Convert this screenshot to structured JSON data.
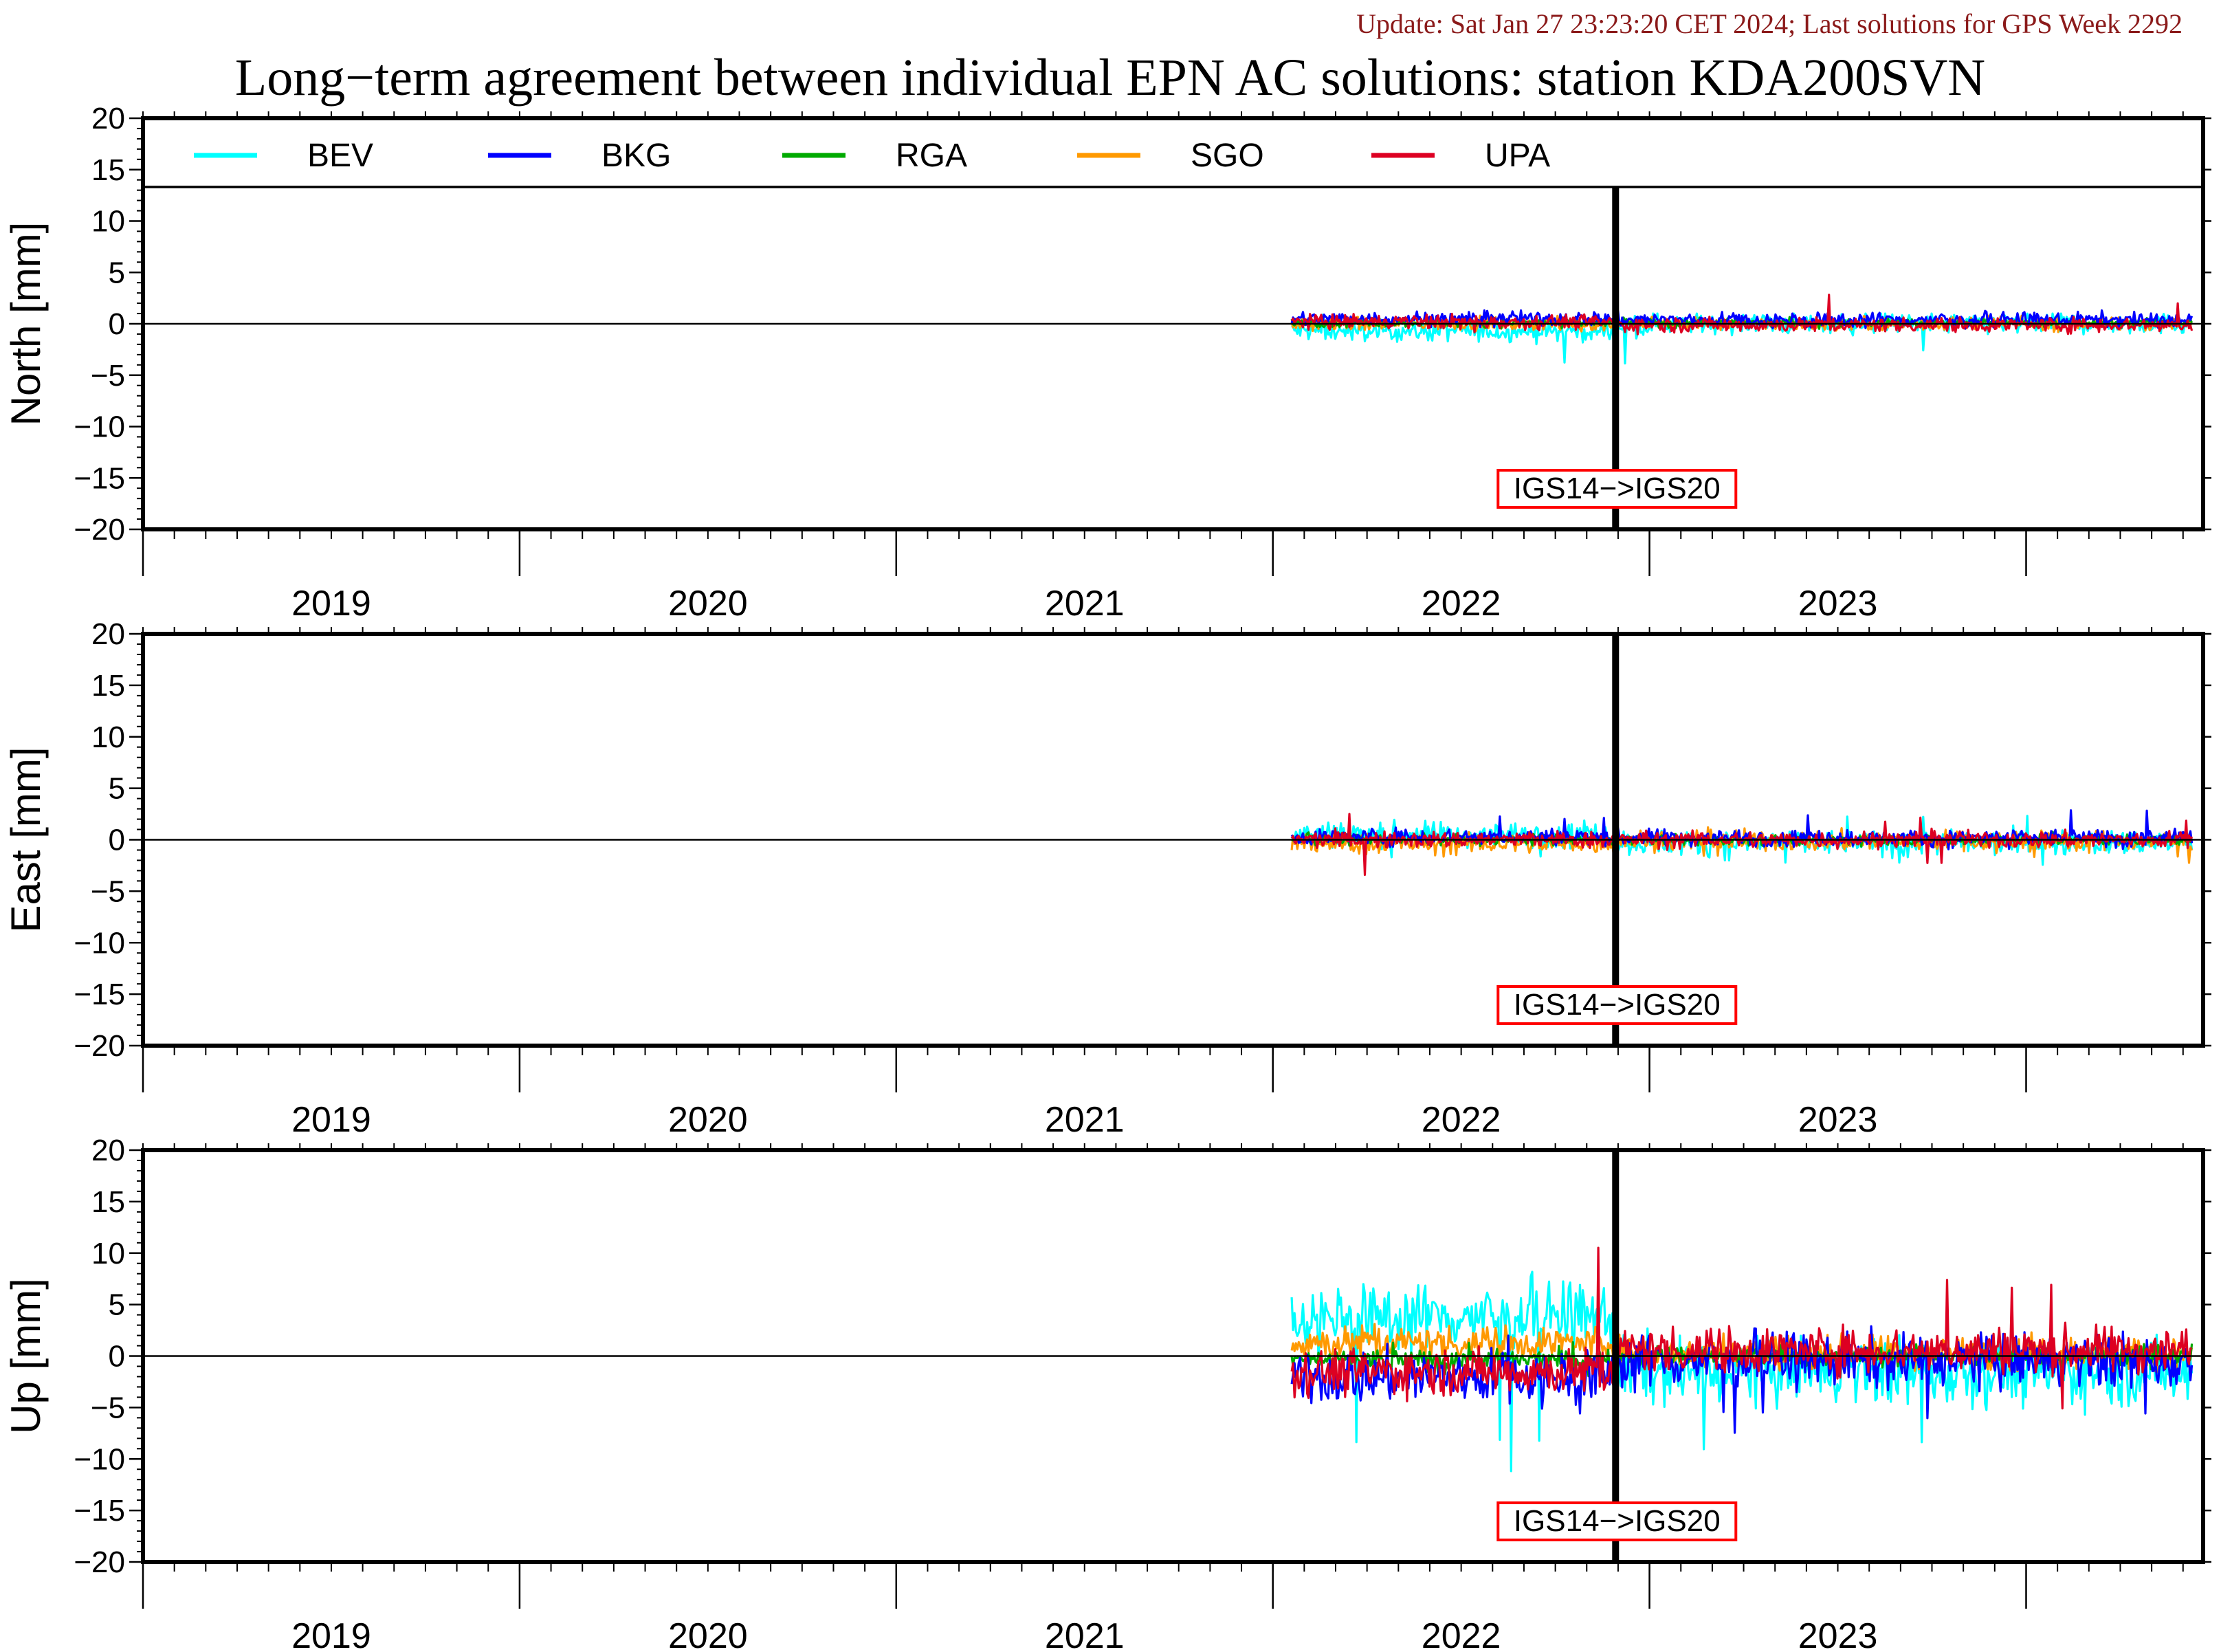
{
  "header": {
    "update": "Update: Sat Jan 27 23:23:20 CET 2024; Last solutions for GPS Week 2292",
    "title": "Long−term agreement between individual EPN AC solutions: station KDA200SVN"
  },
  "colors": {
    "update_text": "#8b1a1a",
    "BEV": "#00ffff",
    "BKG": "#0000ff",
    "RGA": "#00aa00",
    "SGO": "#ff9900",
    "UPA": "#dd0022",
    "marker_box": "#ff0000"
  },
  "legend": [
    {
      "name": "BEV"
    },
    {
      "name": "BKG"
    },
    {
      "name": "RGA"
    },
    {
      "name": "SGO"
    },
    {
      "name": "UPA"
    }
  ],
  "chart_data": [
    {
      "type": "line",
      "ylabel": "North [mm]",
      "ylim": [
        -20,
        20
      ],
      "yticks": [
        "20",
        "15",
        "10",
        "5",
        "0",
        "−5",
        "−10",
        "−15",
        "−20"
      ],
      "xlim": [
        2018.5,
        2023.97
      ],
      "xticks": [
        "2019",
        "2020",
        "2021",
        "2022",
        "2023"
      ],
      "data_range": [
        2021.55,
        2023.94
      ],
      "marker": {
        "x": 2022.41,
        "label": "IGS14−>IGS20"
      },
      "legend_placement": "top",
      "grid": false,
      "series": [
        {
          "name": "BEV",
          "mean_before": -0.7,
          "mean_after": 0.0,
          "noise": 0.5,
          "min": -3.9,
          "max": 1.0
        },
        {
          "name": "BKG",
          "mean_before": 0.5,
          "mean_after": 0.4,
          "noise": 0.35,
          "min": -0.5,
          "max": 1.3
        },
        {
          "name": "RGA",
          "mean_before": 0.1,
          "mean_after": 0.1,
          "noise": 0.2,
          "min": -0.5,
          "max": 0.7
        },
        {
          "name": "SGO",
          "mean_before": 0.0,
          "mean_after": 0.0,
          "noise": 0.3,
          "min": -0.8,
          "max": 0.8
        },
        {
          "name": "UPA",
          "mean_before": 0.2,
          "mean_after": -0.1,
          "noise": 0.35,
          "min": -1.2,
          "max": 2.9
        }
      ]
    },
    {
      "type": "line",
      "ylabel": "East [mm]",
      "ylim": [
        -20,
        20
      ],
      "yticks": [
        "20",
        "15",
        "10",
        "5",
        "0",
        "−5",
        "−10",
        "−15",
        "−20"
      ],
      "xlim": [
        2018.5,
        2023.97
      ],
      "xticks": [
        "2019",
        "2020",
        "2021",
        "2022",
        "2023"
      ],
      "data_range": [
        2021.55,
        2023.94
      ],
      "marker": {
        "x": 2022.41,
        "label": "IGS14−>IGS20"
      },
      "grid": false,
      "series": [
        {
          "name": "BEV",
          "mean_before": 0.5,
          "mean_after": -0.3,
          "noise": 0.6,
          "min": -2.5,
          "max": 2.6
        },
        {
          "name": "BKG",
          "mean_before": 0.3,
          "mean_after": 0.2,
          "noise": 0.4,
          "min": -1.0,
          "max": 3.3
        },
        {
          "name": "RGA",
          "mean_before": 0.0,
          "mean_after": 0.0,
          "noise": 0.25,
          "min": -0.8,
          "max": 0.8
        },
        {
          "name": "SGO",
          "mean_before": -0.4,
          "mean_after": -0.1,
          "noise": 0.5,
          "min": -2.4,
          "max": 1.2
        },
        {
          "name": "UPA",
          "mean_before": 0.0,
          "mean_after": 0.0,
          "noise": 0.4,
          "min": -3.5,
          "max": 2.8
        }
      ]
    },
    {
      "type": "line",
      "ylabel": "Up [mm]",
      "ylim": [
        -20,
        20
      ],
      "yticks": [
        "20",
        "15",
        "10",
        "5",
        "0",
        "−5",
        "−10",
        "−15",
        "−20"
      ],
      "xlim": [
        2018.5,
        2023.97
      ],
      "xticks": [
        "2019",
        "2020",
        "2021",
        "2022",
        "2023"
      ],
      "data_range": [
        2021.55,
        2023.94
      ],
      "marker": {
        "x": 2022.41,
        "label": "IGS14−>IGS20"
      },
      "grid": false,
      "series": [
        {
          "name": "BEV",
          "mean_before": 3.8,
          "mean_after": -1.5,
          "noise": 1.6,
          "min": -12.0,
          "max": 9.2
        },
        {
          "name": "BKG",
          "mean_before": -2.0,
          "mean_after": -0.5,
          "noise": 1.3,
          "min": -8.0,
          "max": 3.0
        },
        {
          "name": "RGA",
          "mean_before": -0.4,
          "mean_after": 0.0,
          "noise": 0.5,
          "min": -2.0,
          "max": 1.5
        },
        {
          "name": "SGO",
          "mean_before": 1.3,
          "mean_after": 0.3,
          "noise": 0.8,
          "min": -2.0,
          "max": 3.2
        },
        {
          "name": "UPA",
          "mean_before": -1.5,
          "mean_after": 0.6,
          "noise": 1.1,
          "min": -7.5,
          "max": 10.8
        }
      ]
    }
  ]
}
